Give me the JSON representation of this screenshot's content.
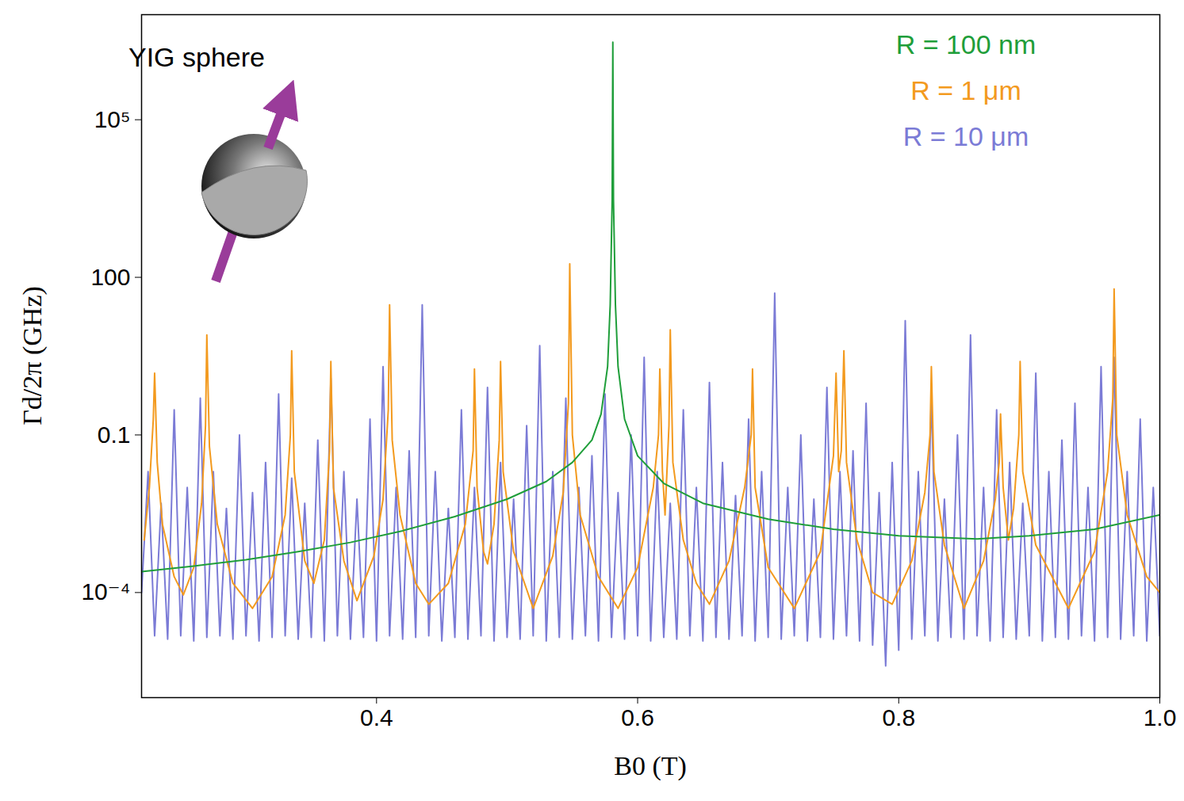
{
  "chart_data": {
    "type": "line",
    "x_label": "B0 (T)",
    "y_label": "Γd/2π (GHz)",
    "annotations": [
      {
        "text": "YIG sphere"
      }
    ],
    "log": "y",
    "grid": false,
    "legend": "top-right",
    "xlim": [
      0.22,
      1.0
    ],
    "xticks": [
      0.4,
      0.6,
      0.8,
      {
        "value": 1,
        "label": "1.0"
      }
    ],
    "ylim": [
      1e-06,
      10000000
    ],
    "yticks": [
      {
        "value": 0.0001,
        "label": "10⁻⁴"
      },
      0.1,
      100,
      {
        "value": 100000,
        "label": "10⁵"
      }
    ],
    "series": [
      {
        "name": "R = 100 nm",
        "color": "#1f9e3a",
        "x": [
          0.22,
          0.26,
          0.3,
          0.34,
          0.38,
          0.42,
          0.46,
          0.5,
          0.53,
          0.55,
          0.565,
          0.572,
          0.577,
          0.579,
          0.5805,
          0.581,
          0.5815,
          0.583,
          0.585,
          0.59,
          0.6,
          0.62,
          0.65,
          0.7,
          0.75,
          0.8,
          0.86,
          0.9,
          0.95,
          1.0
        ],
        "values": [
          0.00025,
          0.00032,
          0.00042,
          0.0006,
          0.0009,
          0.0015,
          0.0028,
          0.006,
          0.013,
          0.03,
          0.08,
          0.25,
          2,
          30,
          3000,
          3000000,
          3000,
          30,
          2,
          0.2,
          0.04,
          0.012,
          0.005,
          0.0025,
          0.0016,
          0.0012,
          0.00105,
          0.0012,
          0.0016,
          0.003
        ]
      },
      {
        "name": "R = 1 μm",
        "color": "#f39a1e",
        "x": [
          0.222,
          0.226,
          0.229,
          0.23,
          0.232,
          0.236,
          0.245,
          0.252,
          0.26,
          0.266,
          0.269,
          0.27,
          0.272,
          0.278,
          0.29,
          0.305,
          0.32,
          0.33,
          0.334,
          0.335,
          0.337,
          0.345,
          0.352,
          0.36,
          0.364,
          0.365,
          0.367,
          0.375,
          0.385,
          0.398,
          0.405,
          0.409,
          0.41,
          0.412,
          0.418,
          0.43,
          0.44,
          0.455,
          0.468,
          0.474,
          0.475,
          0.477,
          0.482,
          0.485,
          0.49,
          0.494,
          0.495,
          0.497,
          0.505,
          0.52,
          0.535,
          0.543,
          0.547,
          0.548,
          0.55,
          0.556,
          0.57,
          0.585,
          0.6,
          0.612,
          0.616,
          0.617,
          0.619,
          0.621,
          0.624,
          0.625,
          0.627,
          0.635,
          0.645,
          0.655,
          0.67,
          0.682,
          0.687,
          0.688,
          0.69,
          0.7,
          0.72,
          0.74,
          0.75,
          0.752,
          0.754,
          0.756,
          0.758,
          0.76,
          0.768,
          0.78,
          0.795,
          0.81,
          0.82,
          0.824,
          0.825,
          0.827,
          0.835,
          0.85,
          0.865,
          0.874,
          0.877,
          0.878,
          0.88,
          0.884,
          0.888,
          0.892,
          0.893,
          0.895,
          0.905,
          0.93,
          0.95,
          0.96,
          0.964,
          0.965,
          0.967,
          0.975,
          0.99,
          1.0
        ],
        "values": [
          0.001,
          0.01,
          0.2,
          1.5,
          0.03,
          0.002,
          0.0002,
          9e-05,
          0.0003,
          0.005,
          0.15,
          8,
          0.06,
          0.002,
          0.00015,
          5e-05,
          0.0002,
          0.003,
          0.1,
          4,
          0.02,
          0.0004,
          0.00015,
          0.001,
          0.05,
          2.5,
          0.01,
          0.0004,
          7e-05,
          0.0005,
          0.006,
          0.3,
          30,
          0.08,
          0.003,
          0.00015,
          6e-05,
          0.00015,
          0.002,
          0.05,
          1.8,
          0.01,
          0.0006,
          0.00035,
          0.002,
          0.08,
          2.5,
          0.02,
          0.0006,
          5e-05,
          0.0005,
          0.008,
          0.4,
          180,
          0.1,
          0.003,
          0.0002,
          5e-05,
          0.0003,
          0.01,
          0.1,
          1.8,
          0.02,
          0.003,
          0.15,
          10,
          0.03,
          0.001,
          0.00015,
          6e-05,
          0.0004,
          0.01,
          0.1,
          1.8,
          0.01,
          0.0003,
          5e-05,
          0.0006,
          0.04,
          1.5,
          0.02,
          0.05,
          4,
          0.03,
          0.001,
          0.0001,
          6e-05,
          0.0004,
          0.008,
          0.1,
          2,
          0.02,
          0.0008,
          5e-05,
          0.0004,
          0.006,
          0.03,
          0.25,
          0.01,
          0.001,
          0.004,
          0.1,
          2.5,
          0.02,
          0.0008,
          5e-05,
          0.0006,
          0.02,
          0.5,
          60,
          0.1,
          0.003,
          0.0002,
          0.0001
        ]
      },
      {
        "name": "R = 10 μm",
        "color": "#7b7bd6",
        "x": [
          0.22,
          0.225,
          0.23,
          0.235,
          0.24,
          0.245,
          0.25,
          0.255,
          0.26,
          0.265,
          0.27,
          0.275,
          0.28,
          0.285,
          0.29,
          0.295,
          0.3,
          0.305,
          0.31,
          0.315,
          0.32,
          0.325,
          0.33,
          0.335,
          0.34,
          0.345,
          0.35,
          0.355,
          0.36,
          0.365,
          0.37,
          0.375,
          0.38,
          0.385,
          0.39,
          0.395,
          0.4,
          0.405,
          0.41,
          0.415,
          0.42,
          0.425,
          0.43,
          0.435,
          0.44,
          0.445,
          0.45,
          0.455,
          0.46,
          0.465,
          0.47,
          0.475,
          0.48,
          0.485,
          0.49,
          0.495,
          0.5,
          0.505,
          0.51,
          0.515,
          0.52,
          0.525,
          0.53,
          0.535,
          0.54,
          0.545,
          0.55,
          0.555,
          0.56,
          0.565,
          0.57,
          0.575,
          0.58,
          0.585,
          0.59,
          0.595,
          0.6,
          0.605,
          0.61,
          0.615,
          0.62,
          0.625,
          0.63,
          0.635,
          0.64,
          0.645,
          0.65,
          0.655,
          0.66,
          0.665,
          0.67,
          0.675,
          0.68,
          0.685,
          0.69,
          0.695,
          0.7,
          0.705,
          0.71,
          0.715,
          0.72,
          0.725,
          0.73,
          0.735,
          0.74,
          0.745,
          0.75,
          0.755,
          0.76,
          0.765,
          0.77,
          0.775,
          0.78,
          0.785,
          0.79,
          0.795,
          0.8,
          0.805,
          0.81,
          0.815,
          0.82,
          0.825,
          0.83,
          0.835,
          0.84,
          0.845,
          0.85,
          0.855,
          0.86,
          0.865,
          0.87,
          0.875,
          0.88,
          0.885,
          0.89,
          0.895,
          0.9,
          0.905,
          0.91,
          0.915,
          0.92,
          0.925,
          0.93,
          0.935,
          0.94,
          0.945,
          0.95,
          0.955,
          0.96,
          0.965,
          0.97,
          0.975,
          0.98,
          0.985,
          0.99,
          0.995,
          1.0
        ],
        "values": [
          0.0001,
          0.02,
          1.5e-05,
          0.005,
          1.3e-05,
          0.3,
          1.5e-05,
          0.01,
          1.2e-05,
          0.5,
          1.4e-05,
          0.02,
          1.5e-05,
          0.004,
          1.3e-05,
          0.1,
          1.5e-05,
          0.008,
          1.2e-05,
          0.03,
          1.4e-05,
          0.6,
          1.5e-05,
          0.015,
          1.3e-05,
          0.005,
          1.4e-05,
          0.08,
          1.2e-05,
          1.2,
          1.5e-05,
          0.02,
          1.3e-05,
          0.006,
          1.4e-05,
          0.2,
          1.2e-05,
          2,
          1.5e-05,
          0.01,
          1.3e-05,
          0.05,
          1.4e-05,
          30,
          1.5e-05,
          0.02,
          1.2e-05,
          0.004,
          1.4e-05,
          0.3,
          1.3e-05,
          0.01,
          1.5e-05,
          0.8,
          1.2e-05,
          0.03,
          1.4e-05,
          0.006,
          1.3e-05,
          0.15,
          1.5e-05,
          5,
          1.2e-05,
          0.02,
          1.4e-05,
          0.5,
          1.3e-05,
          0.01,
          1.5e-05,
          0.04,
          1.2e-05,
          0.6,
          1.4e-05,
          0.008,
          1.3e-05,
          0.1,
          1.5e-05,
          3,
          1.2e-05,
          0.02,
          1.4e-05,
          0.005,
          1.3e-05,
          0.3,
          1.5e-05,
          0.01,
          1.2e-05,
          1,
          1.4e-05,
          0.03,
          1.3e-05,
          0.007,
          1.5e-05,
          0.2,
          1.2e-05,
          0.02,
          1.4e-05,
          50,
          1.3e-05,
          0.01,
          1.5e-05,
          0.1,
          1.2e-05,
          0.006,
          1.4e-05,
          0.8,
          1.3e-05,
          0.02,
          1.5e-05,
          0.05,
          1.2e-05,
          0.4,
          1e-05,
          0.008,
          4e-06,
          0.03,
          8e-06,
          15,
          1.3e-05,
          0.02,
          1.5e-05,
          0.5,
          1.2e-05,
          0.006,
          1.4e-05,
          0.1,
          1.3e-05,
          8,
          1.5e-05,
          0.01,
          1.2e-05,
          0.3,
          1.4e-05,
          0.03,
          1.3e-05,
          0.005,
          1.5e-05,
          1.5,
          1.2e-05,
          0.02,
          1.4e-05,
          0.08,
          1.3e-05,
          0.4,
          1.5e-05,
          0.01,
          1.2e-05,
          2,
          1.4e-05,
          3,
          1.3e-05,
          0.02,
          1.5e-05,
          0.2,
          1.2e-05,
          0.01,
          1.5e-05
        ]
      }
    ]
  }
}
